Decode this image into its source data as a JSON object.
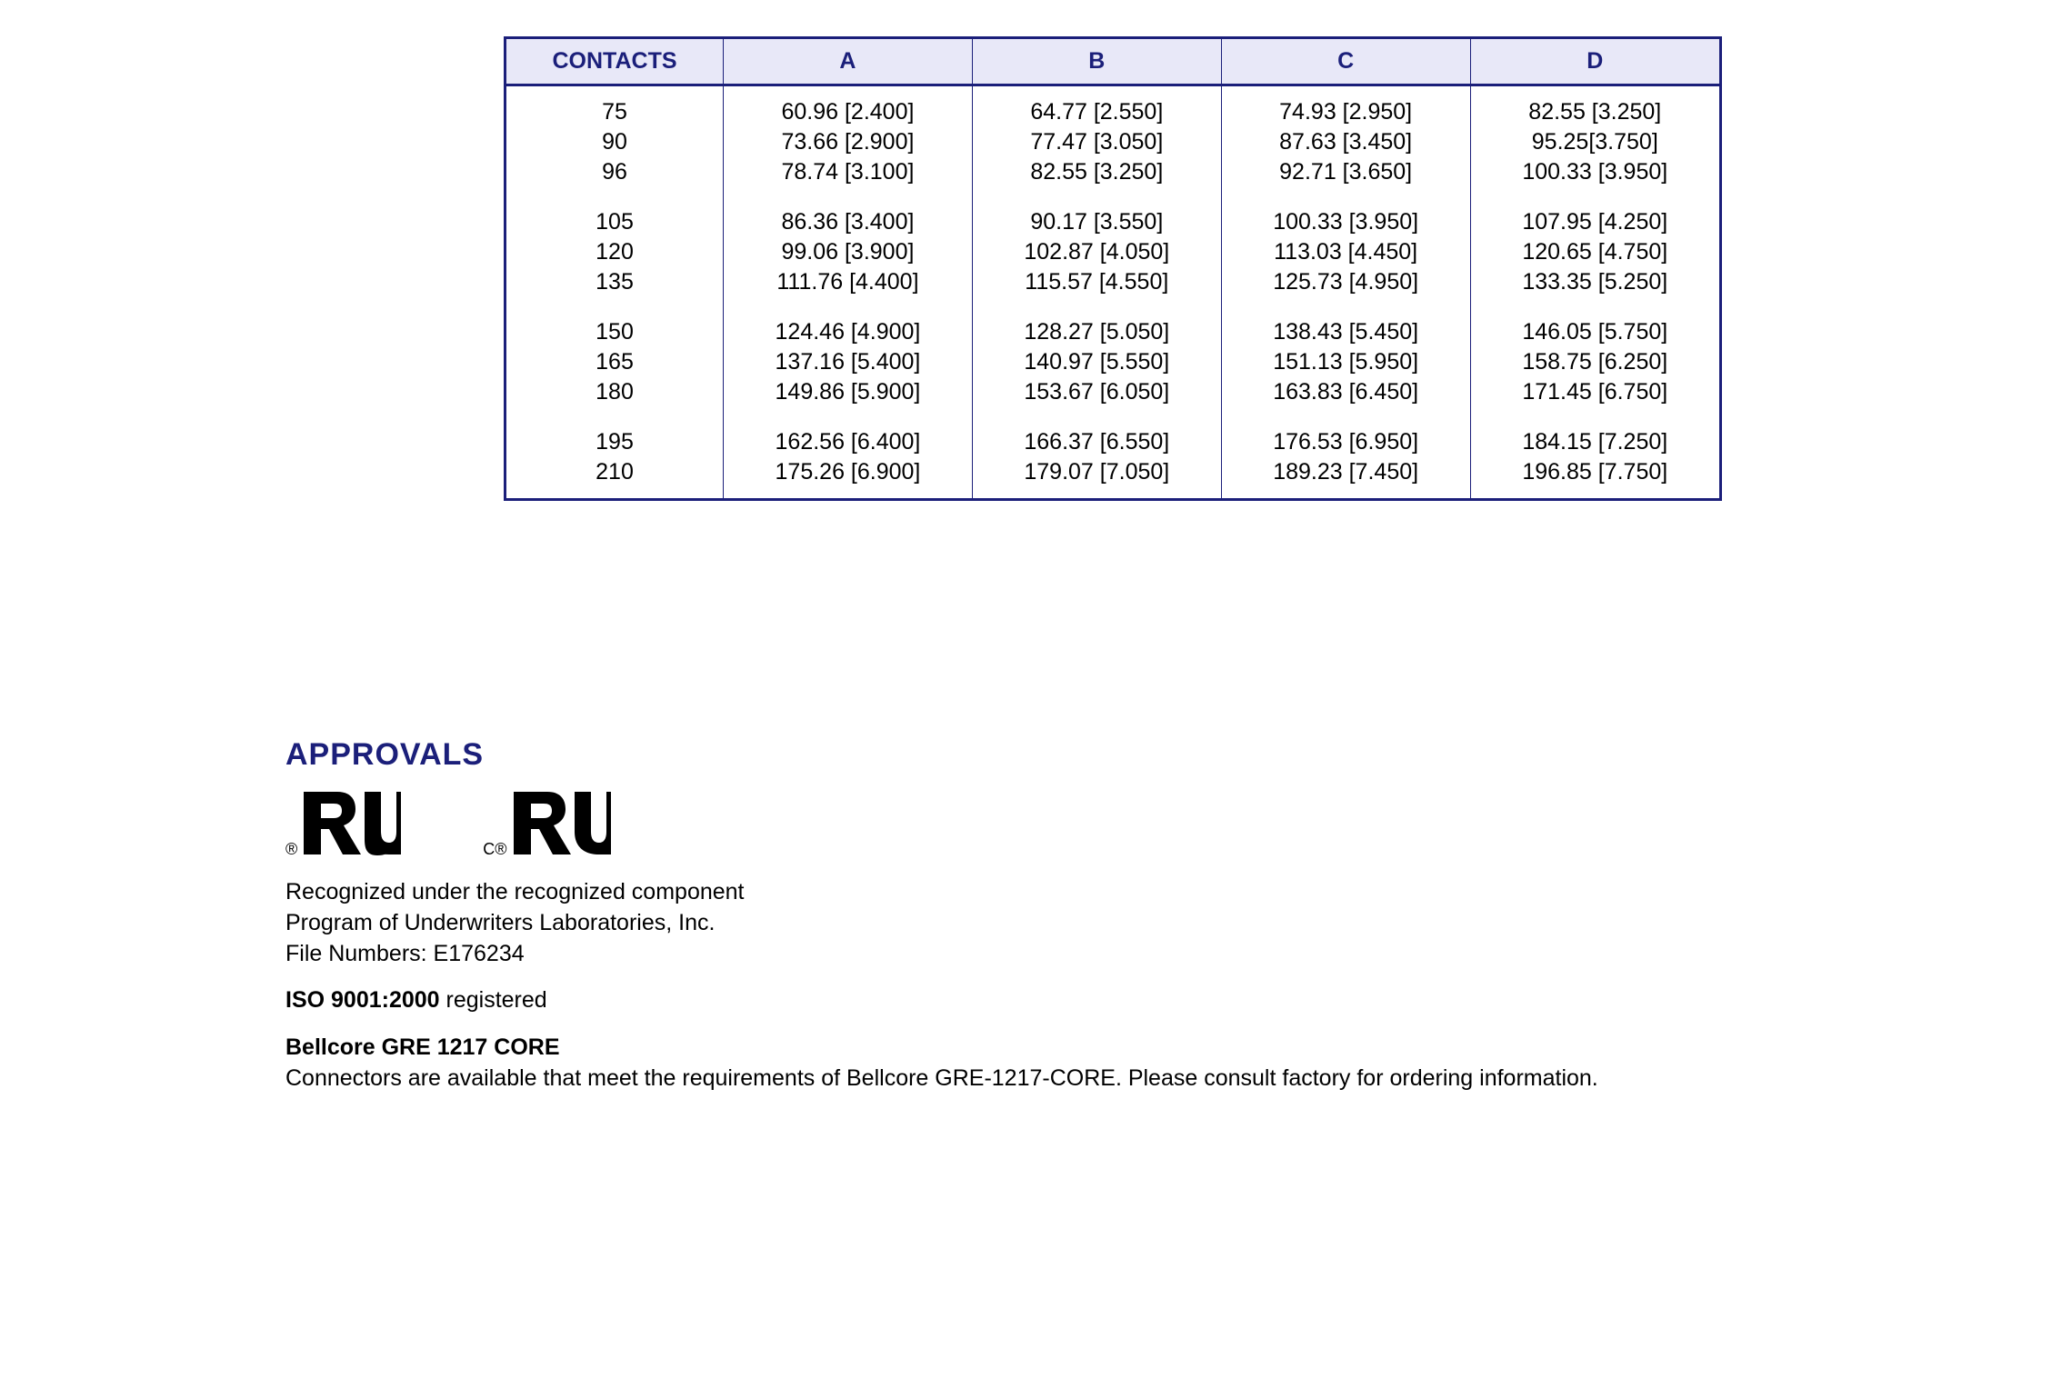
{
  "table": {
    "columns": [
      "CONTACTS",
      "A",
      "B",
      "C",
      "D"
    ],
    "header_bg": "#e8e8f8",
    "header_color": "#1b1f7a",
    "border_color": "#1b1f7a",
    "groups": [
      [
        {
          "contacts": "75",
          "A": "60.96 [2.400]",
          "B": "64.77 [2.550]",
          "C": "74.93 [2.950]",
          "D": "82.55 [3.250]"
        },
        {
          "contacts": "90",
          "A": "73.66 [2.900]",
          "B": "77.47 [3.050]",
          "C": "87.63 [3.450]",
          "D": "95.25[3.750]"
        },
        {
          "contacts": "96",
          "A": "78.74 [3.100]",
          "B": "82.55 [3.250]",
          "C": "92.71 [3.650]",
          "D": "100.33 [3.950]"
        }
      ],
      [
        {
          "contacts": "105",
          "A": "86.36 [3.400]",
          "B": "90.17 [3.550]",
          "C": "100.33 [3.950]",
          "D": "107.95 [4.250]"
        },
        {
          "contacts": "120",
          "A": "99.06 [3.900]",
          "B": "102.87 [4.050]",
          "C": "113.03 [4.450]",
          "D": "120.65 [4.750]"
        },
        {
          "contacts": "135",
          "A": "111.76 [4.400]",
          "B": "115.57 [4.550]",
          "C": "125.73 [4.950]",
          "D": "133.35 [5.250]"
        }
      ],
      [
        {
          "contacts": "150",
          "A": "124.46 [4.900]",
          "B": "128.27 [5.050]",
          "C": "138.43 [5.450]",
          "D": "146.05 [5.750]"
        },
        {
          "contacts": "165",
          "A": "137.16 [5.400]",
          "B": "140.97 [5.550]",
          "C": "151.13 [5.950]",
          "D": "158.75 [6.250]"
        },
        {
          "contacts": "180",
          "A": "149.86 [5.900]",
          "B": "153.67 [6.050]",
          "C": "163.83 [6.450]",
          "D": "171.45 [6.750]"
        }
      ],
      [
        {
          "contacts": "195",
          "A": "162.56 [6.400]",
          "B": "166.37 [6.550]",
          "C": "176.53 [6.950]",
          "D": "184.15 [7.250]"
        },
        {
          "contacts": "210",
          "A": "175.26 [6.900]",
          "B": "179.07 [7.050]",
          "C": "189.23 [7.450]",
          "D": "196.85 [7.750]"
        }
      ]
    ]
  },
  "approvals": {
    "heading": "APPROVALS",
    "recognized_line1": "Recognized under the recognized component",
    "recognized_line2": "Program of Underwriters Laboratories, Inc.",
    "file_numbers": "File Numbers: E176234",
    "iso_bold": "ISO 9001:2000",
    "iso_rest": " registered",
    "bellcore_bold": "Bellcore GRE 1217 CORE",
    "bellcore_text": "Connectors are available that meet the requirements of Bellcore GRE-1217-CORE.  Please consult factory for ordering information."
  },
  "logos": {
    "mark1_sub": "®",
    "mark2_sub": "C®"
  }
}
